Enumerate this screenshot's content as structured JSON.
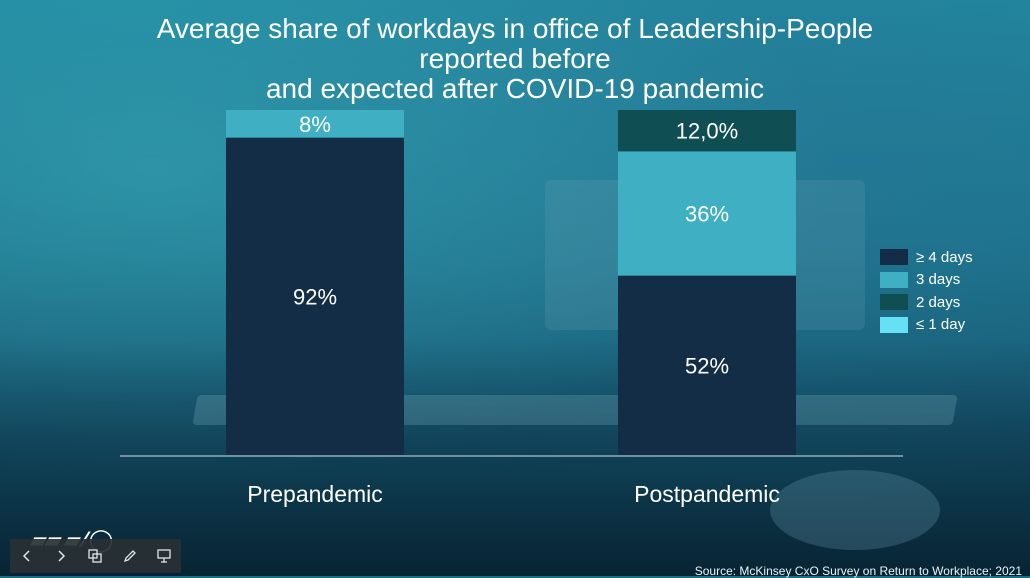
{
  "chart_data": {
    "type": "bar",
    "stacked": true,
    "title_lines": [
      "Average share of workdays in office of Leadership-People",
      "reported before",
      "and expected after COVID-19 pandemic"
    ],
    "categories": [
      "Prepandemic",
      "Postpandemic"
    ],
    "series": [
      {
        "name": "≥ 4 days",
        "color": "#142d47",
        "values": [
          92,
          52
        ],
        "labels": [
          "92%",
          "52%"
        ]
      },
      {
        "name": "3 days",
        "color": "#3fb0c4",
        "values": [
          8,
          36
        ],
        "labels": [
          "8%",
          "36%"
        ]
      },
      {
        "name": "2 days",
        "color": "#0f4e52",
        "values": [
          0,
          12
        ],
        "labels": [
          "",
          "12,0%"
        ]
      },
      {
        "name": "≤ 1 day",
        "color": "#66e0f5",
        "values": [
          0,
          0
        ],
        "labels": [
          "",
          ""
        ]
      }
    ],
    "ylim": [
      0,
      100
    ],
    "legend_position": "right",
    "source": "Source: McKinsey CxO Survey on Return to Workplace; 2021"
  },
  "toolbar": {
    "prev_icon": "chevron-left-icon",
    "next_icon": "chevron-right-icon",
    "slides_icon": "slides-icon",
    "pen_icon": "pen-icon",
    "present_icon": "presentation-icon"
  }
}
